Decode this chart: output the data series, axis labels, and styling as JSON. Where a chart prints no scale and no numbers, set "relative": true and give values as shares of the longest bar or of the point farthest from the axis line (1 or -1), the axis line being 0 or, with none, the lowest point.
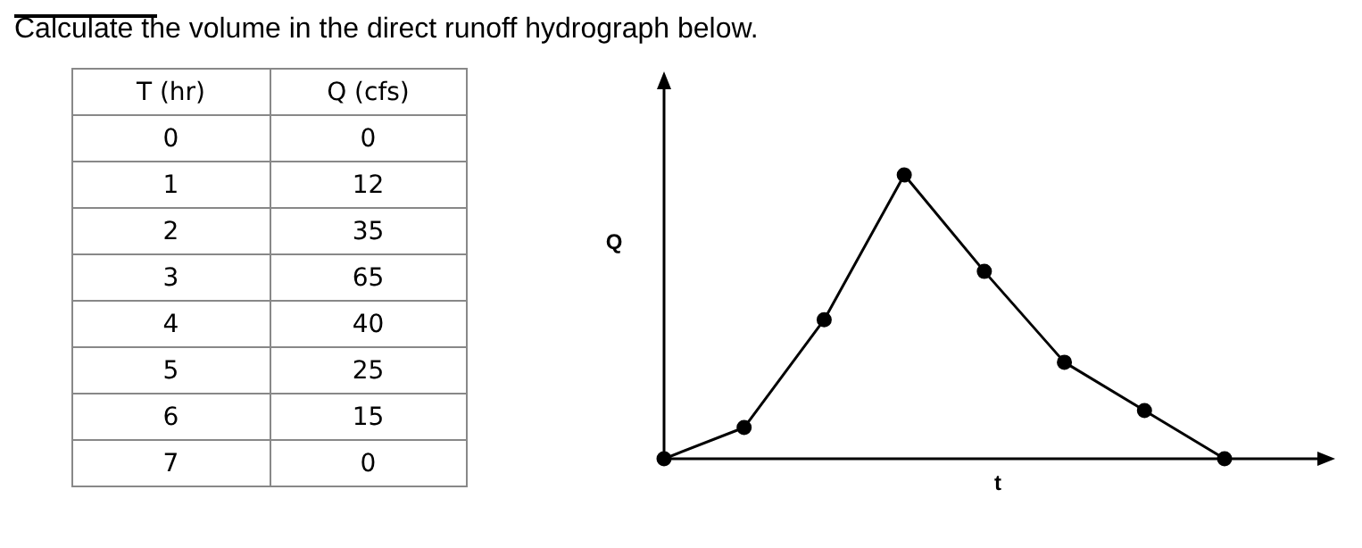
{
  "chart_data": {
    "type": "line",
    "title": "Calculate the volume in the direct runoff hydrograph below.",
    "xlabel": "t",
    "ylabel": "Q",
    "annotations": [
      "T (hr)",
      "Q (cfs)",
      "0",
      "0",
      "1",
      "12",
      "2",
      "35",
      "3",
      "65",
      "4",
      "40",
      "5",
      "25",
      "6",
      "15",
      "7",
      "0"
    ],
    "categories": [
      null,
      null,
      null,
      null,
      null,
      null,
      null,
      null
    ],
    "relative": true,
    "series": [
      {
        "color": "#000000",
        "values": [
          0,
          0.11,
          0.49,
          1,
          0.66,
          0.34,
          0.17,
          0
        ]
      }
    ],
    "grid": false,
    "legend": false,
    "marker": "circle",
    "line_style": "solid"
  }
}
